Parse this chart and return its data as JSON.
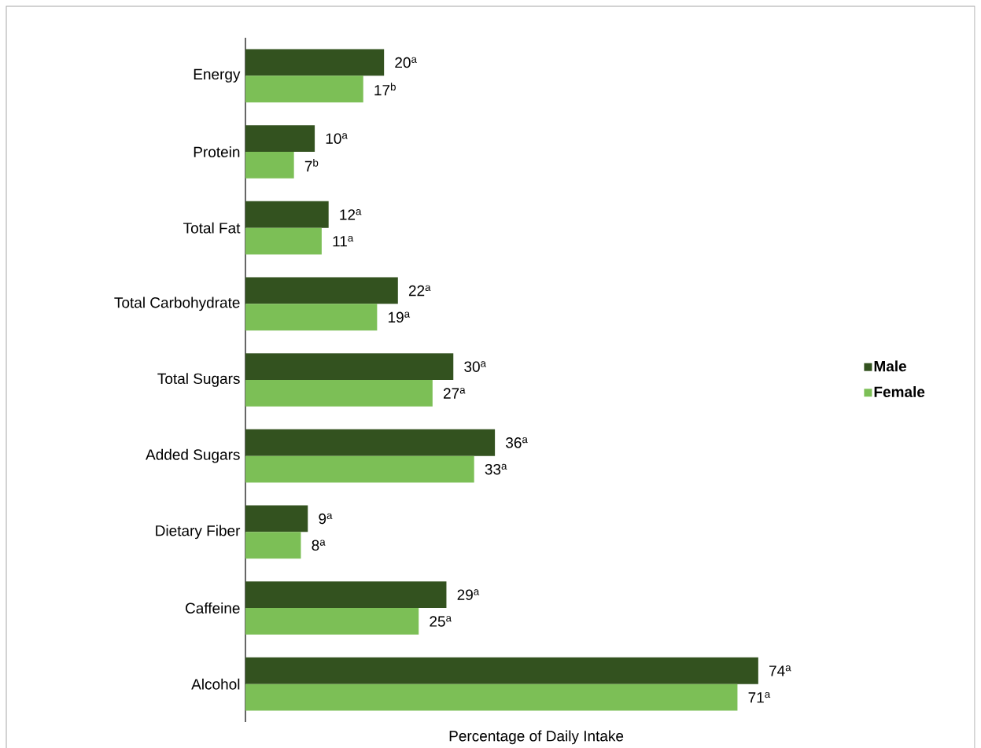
{
  "chart_data": {
    "type": "bar",
    "orientation": "horizontal",
    "xlabel": "Percentage of Daily Intake",
    "categories": [
      "Energy",
      "Protein",
      "Total Fat",
      "Total Carbohydrate",
      "Total Sugars",
      "Added Sugars",
      "Dietary Fiber",
      "Caffeine",
      "Alcohol"
    ],
    "series": [
      {
        "name": "Male",
        "color": "#33521f",
        "values": [
          20,
          10,
          12,
          22,
          30,
          36,
          9,
          29,
          74
        ],
        "value_labels": [
          "20$^{a}$",
          "10$^{a}$",
          "12$^{a}$",
          "22$^{a}$",
          "30$^{a}$",
          "36$^{a}$",
          "9$^{a}$",
          "29$^{a}$",
          "74$^{a}$"
        ]
      },
      {
        "name": "Female",
        "color": "#7cbf56",
        "values": [
          17,
          7,
          11,
          19,
          27,
          33,
          8,
          25,
          71
        ],
        "value_labels": [
          "17$^{b}$",
          "7$^{b}$",
          "11$^{a}$",
          "19$^{a}$",
          "27$^{a}$",
          "33$^{a}$",
          "8$^{a}$",
          "25$^{a}$",
          "71$^{a}$"
        ]
      }
    ],
    "legend": "right",
    "tick_labels": "y"
  }
}
